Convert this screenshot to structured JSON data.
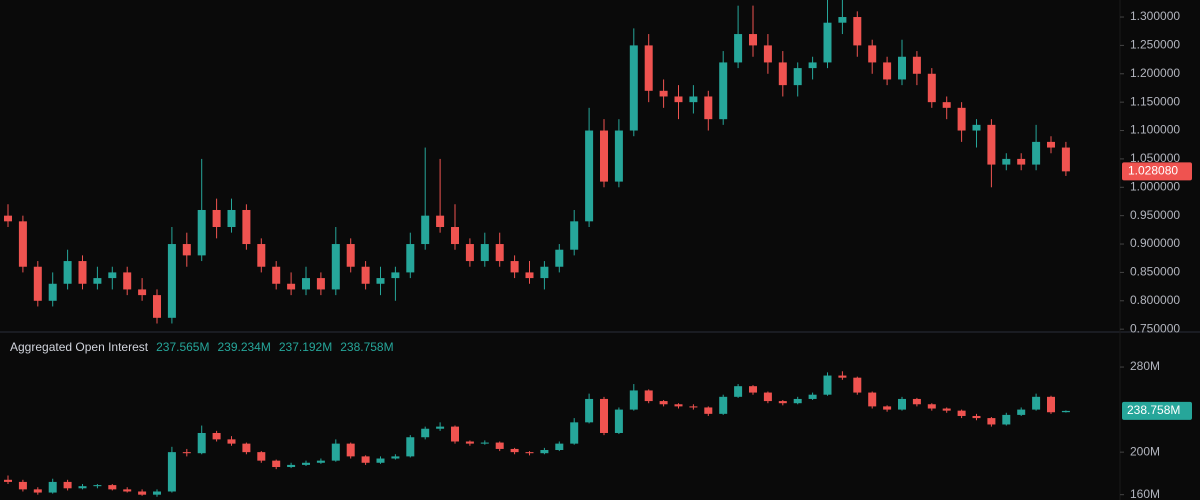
{
  "chart_data": [
    {
      "type": "candlestick",
      "up_color": "#26a69a",
      "down_color": "#ef5350",
      "ylim": [
        0.745,
        1.33
      ],
      "yticks": [
        {
          "value": 0.75,
          "label": "0.750000"
        },
        {
          "value": 0.8,
          "label": "0.800000"
        },
        {
          "value": 0.85,
          "label": "0.850000"
        },
        {
          "value": 0.9,
          "label": "0.900000"
        },
        {
          "value": 0.95,
          "label": "0.950000"
        },
        {
          "value": 1.0,
          "label": "1.000000"
        },
        {
          "value": 1.05,
          "label": "1.050000"
        },
        {
          "value": 1.1,
          "label": "1.100000"
        },
        {
          "value": 1.15,
          "label": "1.150000"
        },
        {
          "value": 1.2,
          "label": "1.200000"
        },
        {
          "value": 1.25,
          "label": "1.250000"
        },
        {
          "value": 1.3,
          "label": "1.300000"
        }
      ],
      "last_value_label": "1.028080",
      "candles": [
        [
          0.95,
          0.97,
          0.93,
          0.94
        ],
        [
          0.94,
          0.95,
          0.85,
          0.86
        ],
        [
          0.86,
          0.87,
          0.79,
          0.8
        ],
        [
          0.8,
          0.85,
          0.79,
          0.83
        ],
        [
          0.83,
          0.89,
          0.82,
          0.87
        ],
        [
          0.87,
          0.88,
          0.82,
          0.83
        ],
        [
          0.83,
          0.86,
          0.82,
          0.84
        ],
        [
          0.84,
          0.86,
          0.82,
          0.85
        ],
        [
          0.85,
          0.86,
          0.81,
          0.82
        ],
        [
          0.82,
          0.84,
          0.8,
          0.81
        ],
        [
          0.81,
          0.82,
          0.76,
          0.77
        ],
        [
          0.77,
          0.93,
          0.76,
          0.9
        ],
        [
          0.9,
          0.92,
          0.86,
          0.88
        ],
        [
          0.88,
          1.05,
          0.87,
          0.96
        ],
        [
          0.96,
          0.98,
          0.91,
          0.93
        ],
        [
          0.93,
          0.98,
          0.92,
          0.96
        ],
        [
          0.96,
          0.97,
          0.89,
          0.9
        ],
        [
          0.9,
          0.91,
          0.85,
          0.86
        ],
        [
          0.86,
          0.87,
          0.82,
          0.83
        ],
        [
          0.83,
          0.85,
          0.81,
          0.82
        ],
        [
          0.82,
          0.86,
          0.81,
          0.84
        ],
        [
          0.84,
          0.85,
          0.81,
          0.82
        ],
        [
          0.82,
          0.93,
          0.81,
          0.9
        ],
        [
          0.9,
          0.91,
          0.85,
          0.86
        ],
        [
          0.86,
          0.87,
          0.82,
          0.83
        ],
        [
          0.83,
          0.86,
          0.81,
          0.84
        ],
        [
          0.84,
          0.86,
          0.8,
          0.85
        ],
        [
          0.85,
          0.92,
          0.84,
          0.9
        ],
        [
          0.9,
          1.07,
          0.89,
          0.95
        ],
        [
          0.95,
          1.05,
          0.92,
          0.93
        ],
        [
          0.93,
          0.97,
          0.89,
          0.9
        ],
        [
          0.9,
          0.91,
          0.86,
          0.87
        ],
        [
          0.87,
          0.92,
          0.86,
          0.9
        ],
        [
          0.9,
          0.92,
          0.86,
          0.87
        ],
        [
          0.87,
          0.88,
          0.84,
          0.85
        ],
        [
          0.85,
          0.87,
          0.83,
          0.84
        ],
        [
          0.84,
          0.87,
          0.82,
          0.86
        ],
        [
          0.86,
          0.9,
          0.85,
          0.89
        ],
        [
          0.89,
          0.96,
          0.88,
          0.94
        ],
        [
          0.94,
          1.14,
          0.93,
          1.1
        ],
        [
          1.1,
          1.12,
          1.0,
          1.01
        ],
        [
          1.01,
          1.12,
          1.0,
          1.1
        ],
        [
          1.1,
          1.28,
          1.09,
          1.25
        ],
        [
          1.25,
          1.27,
          1.15,
          1.17
        ],
        [
          1.17,
          1.19,
          1.14,
          1.16
        ],
        [
          1.16,
          1.18,
          1.12,
          1.15
        ],
        [
          1.15,
          1.18,
          1.13,
          1.16
        ],
        [
          1.16,
          1.17,
          1.1,
          1.12
        ],
        [
          1.12,
          1.24,
          1.11,
          1.22
        ],
        [
          1.22,
          1.32,
          1.21,
          1.27
        ],
        [
          1.27,
          1.32,
          1.23,
          1.25
        ],
        [
          1.25,
          1.27,
          1.2,
          1.22
        ],
        [
          1.22,
          1.24,
          1.16,
          1.18
        ],
        [
          1.18,
          1.22,
          1.16,
          1.21
        ],
        [
          1.21,
          1.23,
          1.19,
          1.22
        ],
        [
          1.22,
          1.33,
          1.21,
          1.29
        ],
        [
          1.29,
          1.33,
          1.27,
          1.3
        ],
        [
          1.3,
          1.31,
          1.23,
          1.25
        ],
        [
          1.25,
          1.26,
          1.2,
          1.22
        ],
        [
          1.22,
          1.23,
          1.18,
          1.19
        ],
        [
          1.19,
          1.26,
          1.18,
          1.23
        ],
        [
          1.23,
          1.24,
          1.18,
          1.2
        ],
        [
          1.2,
          1.21,
          1.14,
          1.15
        ],
        [
          1.15,
          1.16,
          1.12,
          1.14
        ],
        [
          1.14,
          1.15,
          1.08,
          1.1
        ],
        [
          1.1,
          1.12,
          1.07,
          1.11
        ],
        [
          1.11,
          1.12,
          1.0,
          1.04
        ],
        [
          1.04,
          1.06,
          1.03,
          1.05
        ],
        [
          1.05,
          1.06,
          1.03,
          1.04
        ],
        [
          1.04,
          1.11,
          1.03,
          1.08
        ],
        [
          1.08,
          1.09,
          1.06,
          1.07
        ],
        [
          1.07,
          1.08,
          1.02,
          1.02808
        ]
      ]
    },
    {
      "type": "candlestick",
      "title": "Aggregated Open Interest",
      "up_color": "#26a69a",
      "down_color": "#ef5350",
      "ylim": [
        155,
        312
      ],
      "yticks": [
        {
          "value": 160,
          "label": "160M"
        },
        {
          "value": 200,
          "label": "200M"
        },
        {
          "value": 280,
          "label": "280M"
        }
      ],
      "value_labels": [
        "237.565M",
        "239.234M",
        "237.192M",
        "238.758M"
      ],
      "candles": [
        [
          174,
          178,
          170,
          172
        ],
        [
          172,
          174,
          163,
          165
        ],
        [
          165,
          167,
          160,
          162
        ],
        [
          162,
          175,
          161,
          172
        ],
        [
          172,
          174,
          164,
          166
        ],
        [
          166,
          170,
          165,
          168
        ],
        [
          168,
          170,
          166,
          169
        ],
        [
          169,
          170,
          164,
          165
        ],
        [
          165,
          167,
          162,
          163
        ],
        [
          163,
          165,
          159,
          160
        ],
        [
          160,
          165,
          158,
          163
        ],
        [
          163,
          205,
          162,
          200
        ],
        [
          200,
          203,
          196,
          199
        ],
        [
          199,
          225,
          198,
          218
        ],
        [
          218,
          220,
          210,
          212
        ],
        [
          212,
          215,
          206,
          208
        ],
        [
          208,
          209,
          198,
          200
        ],
        [
          200,
          201,
          190,
          192
        ],
        [
          192,
          193,
          184,
          186
        ],
        [
          186,
          190,
          185,
          188
        ],
        [
          188,
          192,
          187,
          190
        ],
        [
          190,
          194,
          189,
          192
        ],
        [
          192,
          212,
          191,
          208
        ],
        [
          208,
          209,
          194,
          196
        ],
        [
          196,
          197,
          188,
          190
        ],
        [
          190,
          196,
          189,
          194
        ],
        [
          194,
          198,
          193,
          196
        ],
        [
          196,
          216,
          195,
          214
        ],
        [
          214,
          224,
          212,
          222
        ],
        [
          222,
          228,
          220,
          224
        ],
        [
          224,
          225,
          208,
          210
        ],
        [
          210,
          211,
          206,
          208
        ],
        [
          208,
          211,
          207,
          209
        ],
        [
          209,
          210,
          201,
          203
        ],
        [
          203,
          204,
          198,
          200
        ],
        [
          200,
          201,
          197,
          199
        ],
        [
          199,
          204,
          198,
          202
        ],
        [
          202,
          210,
          201,
          208
        ],
        [
          208,
          232,
          207,
          228
        ],
        [
          228,
          255,
          227,
          250
        ],
        [
          250,
          252,
          216,
          218
        ],
        [
          218,
          242,
          217,
          240
        ],
        [
          240,
          264,
          239,
          258
        ],
        [
          258,
          259,
          246,
          248
        ],
        [
          248,
          249,
          243,
          245
        ],
        [
          245,
          246,
          241,
          243
        ],
        [
          243,
          245,
          240,
          242
        ],
        [
          242,
          243,
          234,
          236
        ],
        [
          236,
          254,
          235,
          252
        ],
        [
          252,
          264,
          251,
          262
        ],
        [
          262,
          263,
          254,
          256
        ],
        [
          256,
          257,
          246,
          248
        ],
        [
          248,
          249,
          244,
          246
        ],
        [
          246,
          252,
          245,
          250
        ],
        [
          250,
          256,
          249,
          254
        ],
        [
          254,
          275,
          253,
          272
        ],
        [
          272,
          276,
          268,
          270
        ],
        [
          270,
          271,
          254,
          256
        ],
        [
          256,
          257,
          241,
          243
        ],
        [
          243,
          244,
          238,
          240
        ],
        [
          240,
          252,
          239,
          250
        ],
        [
          250,
          251,
          243,
          245
        ],
        [
          245,
          246,
          239,
          241
        ],
        [
          241,
          242,
          237,
          239
        ],
        [
          239,
          240,
          232,
          234
        ],
        [
          234,
          236,
          230,
          232
        ],
        [
          232,
          233,
          224,
          226
        ],
        [
          226,
          237,
          225,
          235
        ],
        [
          235,
          242,
          234,
          240
        ],
        [
          240,
          255,
          239,
          252
        ],
        [
          252,
          253,
          236,
          237.5
        ],
        [
          237.565,
          239.234,
          237.192,
          238.758
        ]
      ]
    }
  ]
}
